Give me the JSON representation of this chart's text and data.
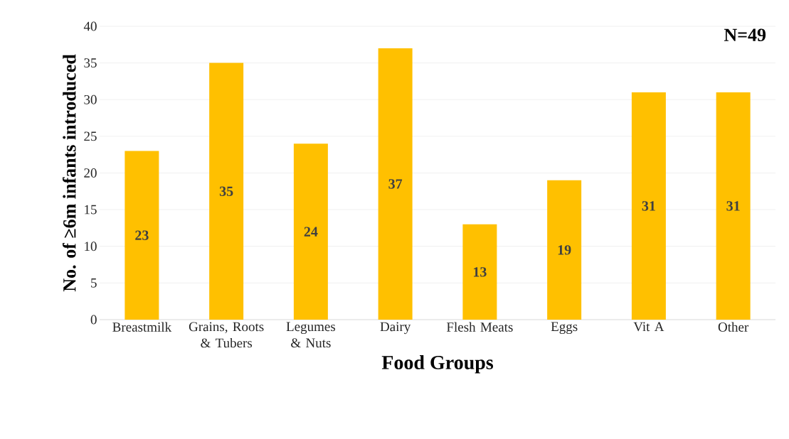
{
  "chart_data": {
    "type": "bar",
    "xlabel": "Food Groups",
    "ylabel": "No. of ≥6m infants introduced",
    "categories": [
      "Breastmilk",
      "Grains, Roots & Tubers",
      "Legumes & Nuts",
      "Dairy",
      "Flesh Meats",
      "Eggs",
      "Vit A",
      "Other"
    ],
    "values": [
      23,
      35,
      24,
      37,
      13,
      19,
      31,
      31
    ],
    "color": "#ffc000",
    "ylim": [
      0,
      40
    ],
    "yticks": [
      0,
      5,
      10,
      15,
      20,
      25,
      30,
      35,
      40
    ],
    "grid": "y",
    "data_labels": true,
    "annotations": [
      "N=49"
    ]
  }
}
